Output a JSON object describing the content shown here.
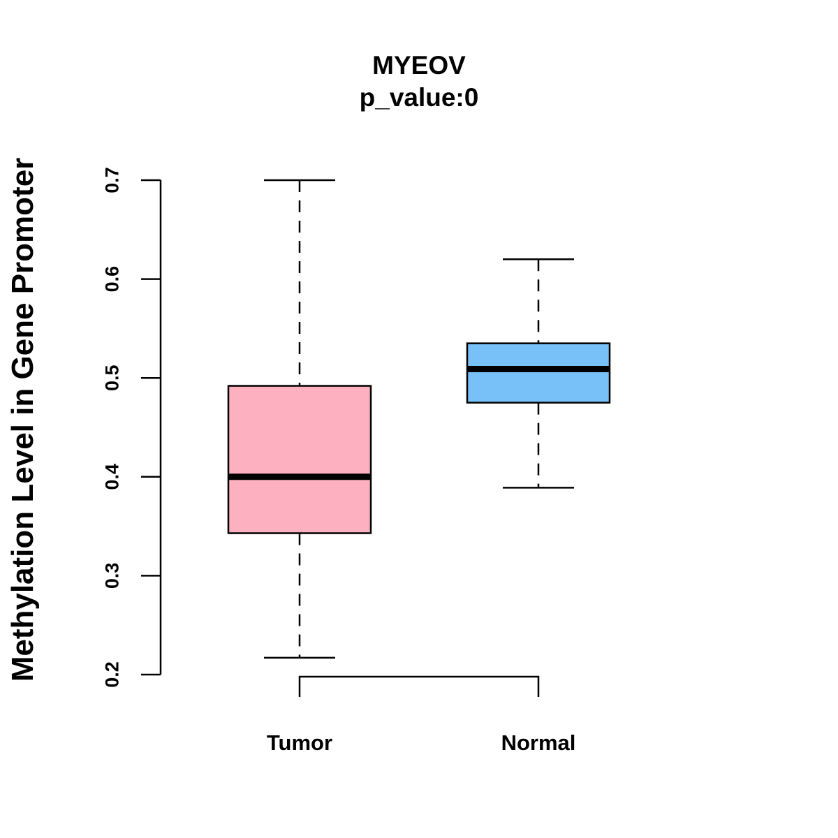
{
  "chart_data": {
    "type": "boxplot",
    "title": "MYEOV",
    "subtitle": "p_value:0",
    "xlabel": "",
    "ylabel": "Methylation Level in Gene Promoter",
    "ylim": [
      0.2,
      0.7
    ],
    "yticks": [
      0.2,
      0.3,
      0.4,
      0.5,
      0.6,
      0.7
    ],
    "ytick_labels": [
      "0.2",
      "0.3",
      "0.4",
      "0.5",
      "0.6",
      "0.7"
    ],
    "categories": [
      "Tumor",
      "Normal"
    ],
    "boxes": [
      {
        "name": "Tumor",
        "min": 0.217,
        "q1": 0.343,
        "median": 0.4,
        "q3": 0.492,
        "max": 0.7,
        "color": "#FDB0C0"
      },
      {
        "name": "Normal",
        "min": 0.389,
        "q1": 0.475,
        "median": 0.509,
        "q3": 0.535,
        "max": 0.62,
        "color": "#78C0F8"
      }
    ],
    "significance_bracket": {
      "from": "Tumor",
      "to": "Normal"
    },
    "grid": false,
    "legend": "none"
  }
}
